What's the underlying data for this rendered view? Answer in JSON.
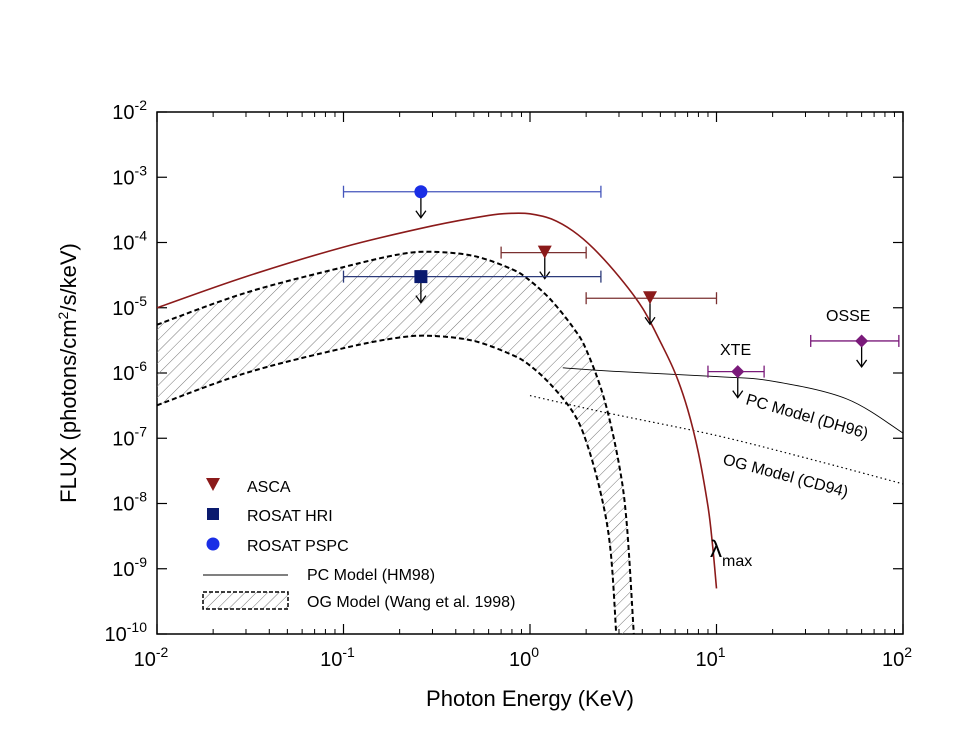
{
  "chart_data": {
    "type": "scatter",
    "title": "",
    "xlabel": "Photon Energy (KeV)",
    "ylabel": "FLUX (photons/cm²/s/keV)",
    "ylabel_parts": {
      "pre": "FLUX (photons/cm",
      "sup": "2",
      "post": "/s/keV)"
    },
    "xscale": "log",
    "yscale": "log",
    "xlim": [
      0.01,
      100
    ],
    "ylim": [
      1e-10,
      0.01
    ],
    "x_ticks": [
      {
        "value": 0.01,
        "base": "10",
        "exp": "-2"
      },
      {
        "value": 0.1,
        "base": "10",
        "exp": "-1"
      },
      {
        "value": 1,
        "base": "10",
        "exp": "0"
      },
      {
        "value": 10,
        "base": "10",
        "exp": "1"
      },
      {
        "value": 100,
        "base": "10",
        "exp": "2"
      }
    ],
    "y_ticks": [
      {
        "value": 1e-10,
        "base": "10",
        "exp": "-10"
      },
      {
        "value": 1e-09,
        "base": "10",
        "exp": "-9"
      },
      {
        "value": 1e-08,
        "base": "10",
        "exp": "-8"
      },
      {
        "value": 1e-07,
        "base": "10",
        "exp": "-7"
      },
      {
        "value": 1e-06,
        "base": "10",
        "exp": "-6"
      },
      {
        "value": 1e-05,
        "base": "10",
        "exp": "-5"
      },
      {
        "value": 0.0001,
        "base": "10",
        "exp": "-4"
      },
      {
        "value": 0.001,
        "base": "10",
        "exp": "-3"
      },
      {
        "value": 0.01,
        "base": "10",
        "exp": "-2"
      }
    ],
    "colors": {
      "asca": "#8b1a1a",
      "asca_err": "#7a3030",
      "rosat_hri": "#0a1a6e",
      "rosat_hri_err": "#2c3a7a",
      "rosat_pspc": "#1a2ee6",
      "rosat_pspc_err": "#4455bb",
      "xte": "#7a1a7a",
      "osse": "#7a1a7a",
      "curve_max": "#8b1a1a"
    },
    "series": [
      {
        "name": "ASCA",
        "marker": "triangle-down",
        "upper_limit": true,
        "points": [
          {
            "x": 1.2,
            "y": 7e-05,
            "xlo": 0.7,
            "xhi": 2.0
          },
          {
            "x": 4.4,
            "y": 1.4e-05,
            "xlo": 2.0,
            "xhi": 10
          }
        ]
      },
      {
        "name": "ROSAT HRI",
        "marker": "square",
        "upper_limit": true,
        "points": [
          {
            "x": 0.26,
            "y": 3e-05,
            "xlo": 0.1,
            "xhi": 2.4
          }
        ]
      },
      {
        "name": "ROSAT PSPC",
        "marker": "circle",
        "upper_limit": true,
        "points": [
          {
            "x": 0.26,
            "y": 0.0006,
            "xlo": 0.1,
            "xhi": 2.4
          }
        ]
      },
      {
        "name": "XTE",
        "marker": "diamond",
        "upper_limit": true,
        "points": [
          {
            "x": 13,
            "y": 1.05e-06,
            "xlo": 9,
            "xhi": 18
          }
        ]
      },
      {
        "name": "OSSE",
        "marker": "diamond",
        "upper_limit": true,
        "points": [
          {
            "x": 60,
            "y": 3.1e-06,
            "xlo": 32,
            "xhi": 95
          }
        ]
      }
    ],
    "curves": {
      "lambda_max": {
        "label_base": "λ",
        "label_sub": "max",
        "points": [
          [
            0.01,
            1e-05
          ],
          [
            0.03,
            3e-05
          ],
          [
            0.1,
            8.5e-05
          ],
          [
            0.3,
            0.00018
          ],
          [
            0.6,
            0.00026
          ],
          [
            0.8,
            0.00028
          ],
          [
            1.0,
            0.000275
          ],
          [
            1.3,
            0.00023
          ],
          [
            1.7,
            0.00015
          ],
          [
            2.2,
            8e-05
          ],
          [
            3,
            3e-05
          ],
          [
            4,
            1e-05
          ],
          [
            5,
            3e-06
          ],
          [
            6,
            1e-06
          ],
          [
            7,
            2.8e-07
          ],
          [
            8,
            6e-08
          ],
          [
            9,
            9e-09
          ],
          [
            9.5,
            2.5e-09
          ],
          [
            10,
            5e-10
          ]
        ]
      },
      "og_wang_upper": {
        "points": [
          [
            0.01,
            5.5e-06
          ],
          [
            0.03,
            1.7e-05
          ],
          [
            0.1,
            4.2e-05
          ],
          [
            0.2,
            6.6e-05
          ],
          [
            0.3,
            7.2e-05
          ],
          [
            0.5,
            6.2e-05
          ],
          [
            0.8,
            3.9e-05
          ],
          [
            1.0,
            2.6e-05
          ],
          [
            1.3,
            1.3e-05
          ],
          [
            1.7,
            5e-06
          ],
          [
            2.0,
            2.3e-06
          ],
          [
            2.5,
            4e-07
          ],
          [
            3.0,
            4e-08
          ],
          [
            3.3,
            5e-09
          ],
          [
            3.6,
            1e-10
          ]
        ]
      },
      "og_wang_lower": {
        "points": [
          [
            0.01,
            3.2e-07
          ],
          [
            0.03,
            1e-06
          ],
          [
            0.1,
            2.4e-06
          ],
          [
            0.2,
            3.5e-06
          ],
          [
            0.3,
            3.7e-06
          ],
          [
            0.5,
            3.1e-06
          ],
          [
            0.8,
            1.9e-06
          ],
          [
            1.0,
            1.3e-06
          ],
          [
            1.3,
            6.5e-07
          ],
          [
            1.7,
            2.5e-07
          ],
          [
            2.0,
            9e-08
          ],
          [
            2.4,
            1.4e-08
          ],
          [
            2.7,
            2e-09
          ],
          [
            2.9,
            1e-10
          ]
        ]
      },
      "pc_dh96": {
        "label": "PC Model (DH96)",
        "points": [
          [
            1.5,
            1.2e-06
          ],
          [
            3,
            1.05e-06
          ],
          [
            10,
            8.8e-07
          ],
          [
            20,
            7.5e-07
          ],
          [
            50,
            4e-07
          ],
          [
            100,
            1.2e-07
          ]
        ]
      },
      "og_cd94": {
        "label": "OG Model (CD94)",
        "points": [
          [
            1.0,
            4.5e-07
          ],
          [
            2.5,
            2.5e-07
          ],
          [
            10,
            1.1e-07
          ],
          [
            30,
            5e-08
          ],
          [
            100,
            2e-08
          ]
        ]
      }
    },
    "annotations": [
      {
        "text": "XTE",
        "near": "XTE point"
      },
      {
        "text": "OSSE",
        "near": "OSSE point"
      }
    ],
    "legend": {
      "position": "bottom-left",
      "entries": [
        {
          "label": "ASCA",
          "symbol": "triangle-down"
        },
        {
          "label": "ROSAT HRI",
          "symbol": "square"
        },
        {
          "label": "ROSAT PSPC",
          "symbol": "circle"
        },
        {
          "label": "PC Model (HM98)",
          "symbol": "line"
        },
        {
          "label": "OG Model (Wang et al. 1998)",
          "symbol": "hatched-box"
        }
      ]
    }
  }
}
